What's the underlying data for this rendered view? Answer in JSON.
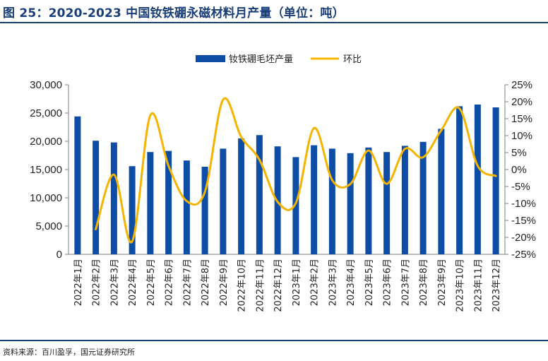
{
  "header": {
    "title": "图 25：2020-2023 中国钕铁硼永磁材料月产量（单位：吨）"
  },
  "footer": {
    "source": "资料来源：百川盈孚，国元证券研究所"
  },
  "colors": {
    "bar": "#0e4da6",
    "line": "#f5b400",
    "accent": "#1a3e78"
  },
  "chart_data": {
    "type": "bar",
    "categories": [
      "2022年1月",
      "2022年2月",
      "2022年3月",
      "2022年4月",
      "2022年5月",
      "2022年6月",
      "2022年7月",
      "2022年8月",
      "2022年9月",
      "2022年10月",
      "2022年11月",
      "2022年12月",
      "2023年1月",
      "2023年2月",
      "2023年3月",
      "2023年4月",
      "2023年5月",
      "2023年6月",
      "2023年7月",
      "2023年8月",
      "2023年9月",
      "2023年10月",
      "2023年11月",
      "2023年12月"
    ],
    "series": [
      {
        "name": "钕铁硼毛坯产量",
        "type": "bar",
        "axis": "left",
        "values": [
          24400,
          20100,
          19800,
          15600,
          18100,
          18300,
          16600,
          15500,
          18700,
          20500,
          21100,
          19100,
          17200,
          19300,
          18700,
          17900,
          18900,
          18100,
          19200,
          19900,
          22200,
          26200,
          26500,
          26000
        ]
      },
      {
        "name": "环比",
        "type": "line",
        "axis": "right",
        "values": [
          null,
          -17.6,
          -1.5,
          -21.2,
          16.0,
          1.1,
          -9.3,
          -6.6,
          20.6,
          9.6,
          2.9,
          -9.5,
          -9.9,
          12.2,
          -3.1,
          -4.3,
          5.6,
          -4.2,
          6.1,
          3.6,
          11.6,
          18.0,
          1.1,
          -1.9
        ]
      }
    ],
    "yleft": {
      "min": 0,
      "max": 30000,
      "ticks": [
        "0",
        "5,000",
        "10,000",
        "15,000",
        "20,000",
        "25,000",
        "30,000"
      ]
    },
    "yright": {
      "min": -25,
      "max": 25,
      "ticks": [
        "-25%",
        "-20%",
        "-15%",
        "-10%",
        "-5%",
        "0%",
        "5%",
        "10%",
        "15%",
        "20%",
        "25%"
      ]
    },
    "legend": {
      "position": "top-center"
    },
    "grid": false
  }
}
